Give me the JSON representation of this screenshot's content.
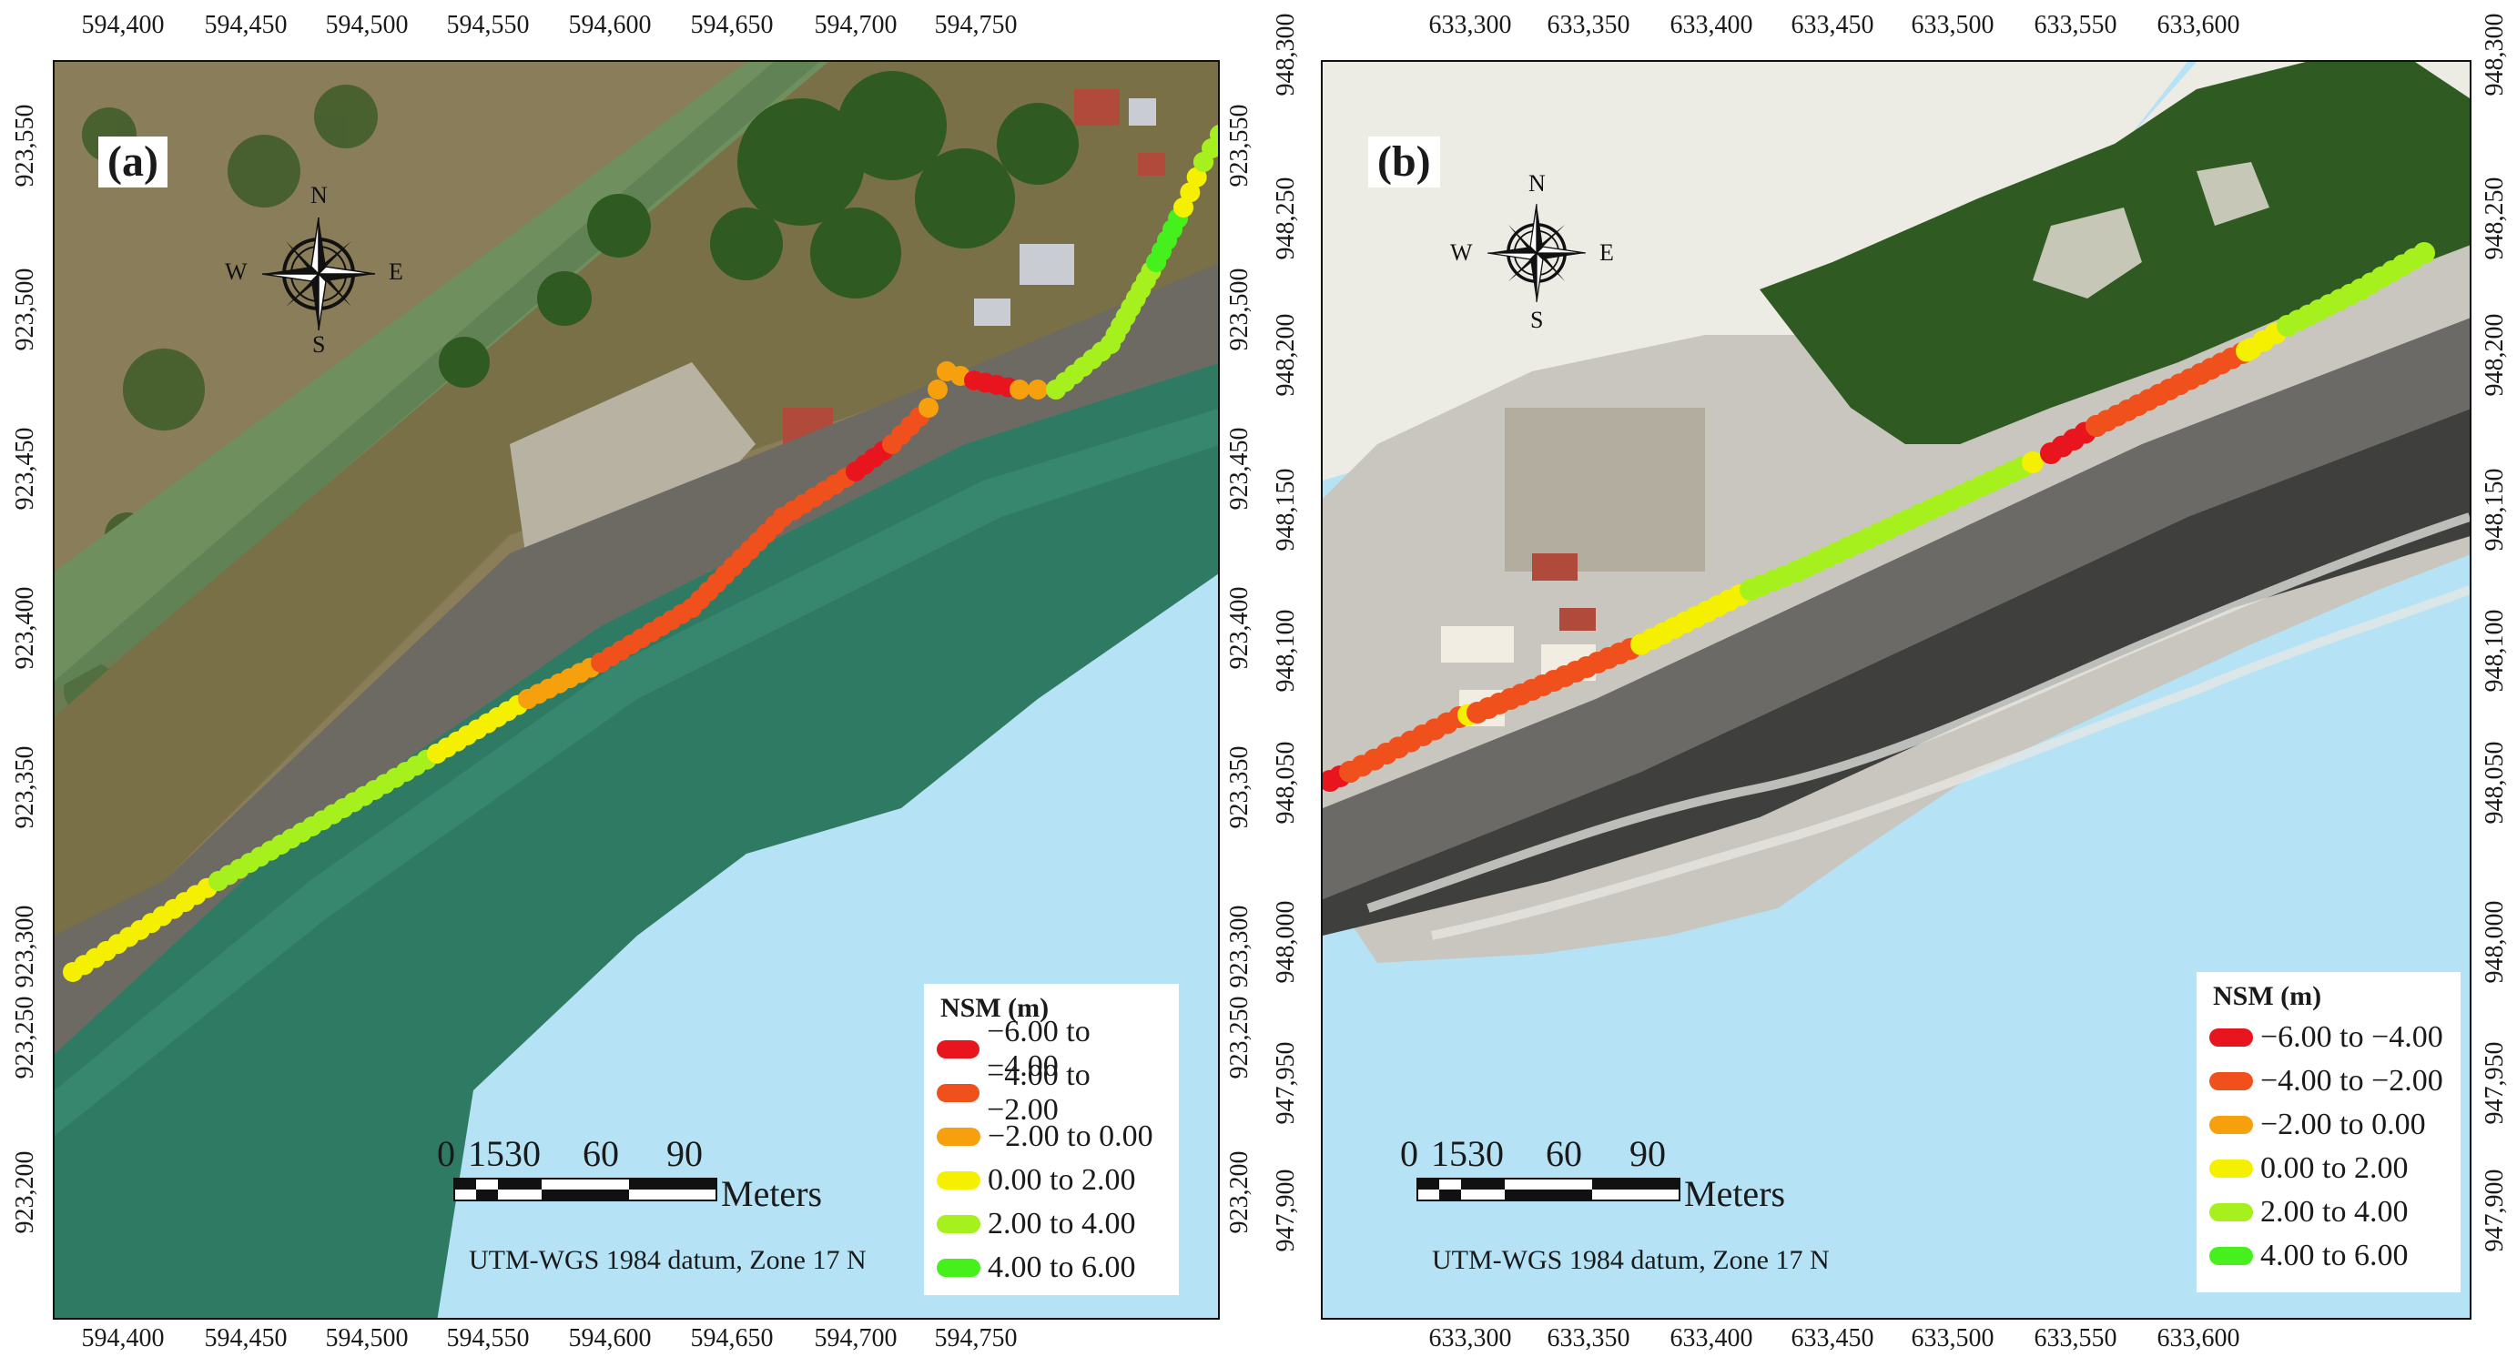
{
  "panels": [
    {
      "id": "a",
      "label": "(a)",
      "x_ticks": [
        "594,400",
        "594,450",
        "594,500",
        "594,550",
        "594,600",
        "594,650",
        "594,700",
        "594,750"
      ],
      "y_ticks": [
        "923,550",
        "923,500",
        "923,450",
        "923,400",
        "923,350",
        "923,300",
        "923,250",
        "923,200"
      ],
      "compass": {
        "n": "N",
        "s": "S",
        "e": "E",
        "w": "W"
      },
      "scale_bar": {
        "ticks": [
          "0",
          "1530",
          "60",
          "90"
        ],
        "unit": "Meters"
      },
      "datum": "UTM-WGS 1984 datum, Zone 17 N",
      "legend_title": "NSM (m)"
    },
    {
      "id": "b",
      "label": "(b)",
      "x_ticks": [
        "633,300",
        "633,350",
        "633,400",
        "633,450",
        "633,500",
        "633,550",
        "633,600"
      ],
      "y_ticks": [
        "948,300",
        "948,250",
        "948,200",
        "948,150",
        "948,100",
        "948,050",
        "948,000",
        "947,950",
        "947,900"
      ],
      "compass": {
        "n": "N",
        "s": "S",
        "e": "E",
        "w": "W"
      },
      "scale_bar": {
        "ticks": [
          "0",
          "1530",
          "60",
          "90"
        ],
        "unit": "Meters"
      },
      "datum": "UTM-WGS 1984 datum, Zone 17 N",
      "legend_title": "NSM (m)"
    }
  ],
  "legend_classes": [
    {
      "label": "−6.00 to −4.00",
      "color": "#e8141e"
    },
    {
      "label": "−4.00 to −2.00",
      "color": "#f0501c"
    },
    {
      "label": "−2.00 to 0.00",
      "color": "#f5a00c"
    },
    {
      "label": "0.00 to 2.00",
      "color": "#f5f000"
    },
    {
      "label": "2.00 to 4.00",
      "color": "#a6f01e"
    },
    {
      "label": "4.00 to 6.00",
      "color": "#46f01c"
    }
  ],
  "colors": {
    "water": "#b5e3f5",
    "land_a": "#8a7d5a",
    "sea_a": "#2f7a63",
    "sand": "#c9c6bf",
    "vegetation": "#2f5a22",
    "blank_b": "#ecebe4"
  }
}
